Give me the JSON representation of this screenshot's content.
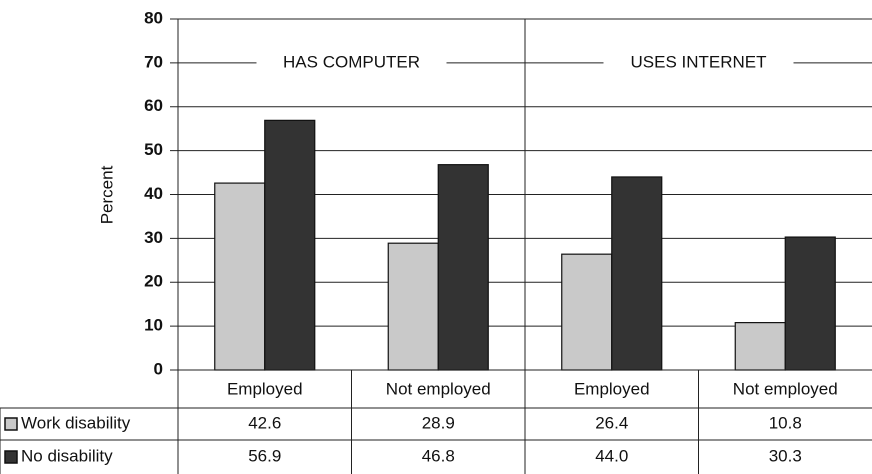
{
  "chart_data": {
    "type": "bar",
    "y_label": "Percent",
    "groups": [
      {
        "label": "HAS COMPUTER"
      },
      {
        "label": "USES INTERNET"
      }
    ],
    "categories": [
      "Employed",
      "Not employed",
      "Employed",
      "Not employed"
    ],
    "series": [
      {
        "name": "Work disability",
        "color": "#c9c9c9",
        "values": [
          42.6,
          28.9,
          26.4,
          10.8
        ],
        "value_labels": [
          "42.6",
          "28.9",
          "26.4",
          "10.8"
        ]
      },
      {
        "name": "No disability",
        "color": "#333333",
        "values": [
          56.9,
          46.8,
          44.0,
          30.3
        ],
        "value_labels": [
          "56.9",
          "46.8",
          "44.0",
          "30.3"
        ]
      }
    ],
    "ylim": [
      0,
      80
    ],
    "yticks": [
      0,
      10,
      20,
      30,
      40,
      50,
      60,
      70,
      80
    ],
    "grid": true
  }
}
